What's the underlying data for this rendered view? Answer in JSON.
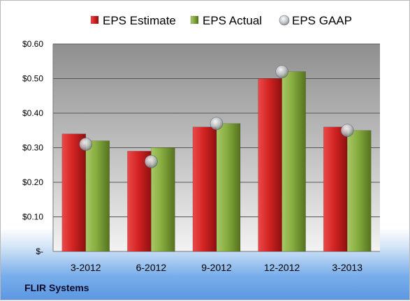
{
  "company": "FLIR Systems",
  "chart_data": {
    "type": "bar",
    "categories": [
      "3-2012",
      "6-2012",
      "9-2012",
      "12-2012",
      "3-2013"
    ],
    "series": [
      {
        "name": "EPS Estimate",
        "values": [
          0.34,
          0.29,
          0.36,
          0.5,
          0.36
        ],
        "color": "#d42323",
        "mark": "bar"
      },
      {
        "name": "EPS Actual",
        "values": [
          0.32,
          0.3,
          0.37,
          0.52,
          0.35
        ],
        "color": "#86ac3f",
        "mark": "bar"
      },
      {
        "name": "EPS GAAP",
        "values": [
          0.31,
          0.26,
          0.37,
          0.52,
          0.35
        ],
        "color": "#b8bcc2",
        "mark": "point"
      }
    ],
    "y_ticks": [
      "$-",
      "$0.10",
      "$0.20",
      "$0.30",
      "$0.40",
      "$0.50",
      "$0.60"
    ],
    "y_tick_values": [
      0,
      0.1,
      0.2,
      0.3,
      0.4,
      0.5,
      0.6
    ],
    "ylim": [
      0,
      0.6
    ],
    "grid": true,
    "legend_position": "top"
  }
}
